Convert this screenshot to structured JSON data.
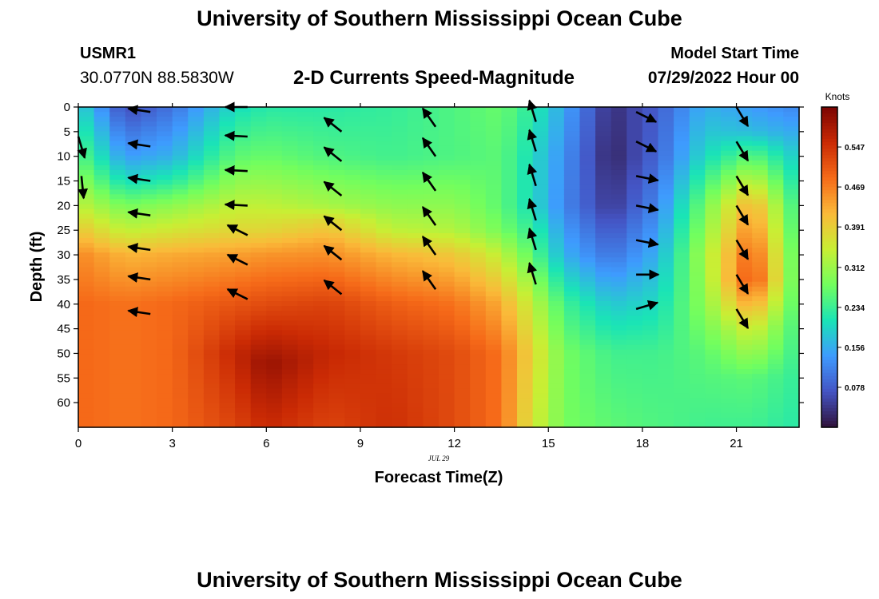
{
  "header": {
    "title": "University of Southern Mississippi Ocean Cube",
    "station": "USMR1",
    "coords": "30.0770N  88.5830W",
    "subtitle": "2-D Currents Speed-Magnitude",
    "model_start_label": "Model Start Time",
    "model_start_value": "07/29/2022 Hour 00"
  },
  "footer": {
    "title": "University of Southern Mississippi Ocean Cube"
  },
  "chart_data": {
    "type": "heatmap",
    "title": "2-D Currents Speed-Magnitude",
    "xlabel": "Forecast Time(Z)",
    "ylabel": "Depth (ft)",
    "date_label": "JUL 29",
    "xlim": [
      0,
      23
    ],
    "ylim": [
      0,
      65
    ],
    "y_inverted": true,
    "x_ticks": [
      0,
      3,
      6,
      9,
      12,
      15,
      18,
      21
    ],
    "y_ticks": [
      0,
      5,
      10,
      15,
      20,
      25,
      30,
      35,
      40,
      45,
      50,
      55,
      60
    ],
    "colorbar": {
      "label": "Knots",
      "ticks": [
        "0.547",
        "0.469",
        "0.391",
        "0.312",
        "0.234",
        "0.156",
        "0.078"
      ],
      "range": [
        0.0,
        0.625
      ],
      "colormap": [
        "#30123b",
        "#4454c4",
        "#3e9bfe",
        "#1ae4b6",
        "#72fe5e",
        "#c8ef34",
        "#faba39",
        "#f66b19",
        "#ca2a04",
        "#7a0403"
      ]
    },
    "speed_profiles": [
      {
        "hour": 0,
        "speed_by_depth": [
          [
            0,
            0.2
          ],
          [
            10,
            0.26
          ],
          [
            20,
            0.34
          ],
          [
            25,
            0.4
          ],
          [
            30,
            0.46
          ],
          [
            40,
            0.49
          ],
          [
            64,
            0.49
          ]
        ]
      },
      {
        "hour": 1.5,
        "speed_by_depth": [
          [
            0,
            0.06
          ],
          [
            10,
            0.14
          ],
          [
            15,
            0.2
          ],
          [
            20,
            0.28
          ],
          [
            25,
            0.34
          ],
          [
            30,
            0.42
          ],
          [
            40,
            0.48
          ],
          [
            64,
            0.48
          ]
        ]
      },
      {
        "hour": 3,
        "speed_by_depth": [
          [
            0,
            0.1
          ],
          [
            10,
            0.16
          ],
          [
            15,
            0.22
          ],
          [
            20,
            0.3
          ],
          [
            25,
            0.36
          ],
          [
            30,
            0.43
          ],
          [
            40,
            0.49
          ],
          [
            64,
            0.49
          ]
        ]
      },
      {
        "hour": 5,
        "speed_by_depth": [
          [
            0,
            0.2
          ],
          [
            10,
            0.26
          ],
          [
            20,
            0.34
          ],
          [
            25,
            0.38
          ],
          [
            30,
            0.44
          ],
          [
            40,
            0.51
          ],
          [
            50,
            0.56
          ],
          [
            64,
            0.53
          ]
        ]
      },
      {
        "hour": 6,
        "speed_by_depth": [
          [
            0,
            0.22
          ],
          [
            10,
            0.27
          ],
          [
            20,
            0.34
          ],
          [
            25,
            0.38
          ],
          [
            30,
            0.45
          ],
          [
            40,
            0.52
          ],
          [
            52,
            0.6
          ],
          [
            64,
            0.56
          ]
        ]
      },
      {
        "hour": 8,
        "speed_by_depth": [
          [
            0,
            0.22
          ],
          [
            10,
            0.25
          ],
          [
            20,
            0.32
          ],
          [
            23,
            0.38
          ],
          [
            28,
            0.44
          ],
          [
            40,
            0.53
          ],
          [
            50,
            0.56
          ],
          [
            64,
            0.53
          ]
        ]
      },
      {
        "hour": 10,
        "speed_by_depth": [
          [
            0,
            0.23
          ],
          [
            10,
            0.24
          ],
          [
            20,
            0.3
          ],
          [
            25,
            0.34
          ],
          [
            30,
            0.42
          ],
          [
            40,
            0.5
          ],
          [
            50,
            0.54
          ],
          [
            64,
            0.55
          ]
        ]
      },
      {
        "hour": 12,
        "speed_by_depth": [
          [
            0,
            0.25
          ],
          [
            10,
            0.25
          ],
          [
            20,
            0.3
          ],
          [
            25,
            0.33
          ],
          [
            30,
            0.4
          ],
          [
            40,
            0.48
          ],
          [
            50,
            0.52
          ],
          [
            64,
            0.52
          ]
        ]
      },
      {
        "hour": 13.5,
        "speed_by_depth": [
          [
            0,
            0.27
          ],
          [
            10,
            0.26
          ],
          [
            20,
            0.26
          ],
          [
            25,
            0.28
          ],
          [
            30,
            0.34
          ],
          [
            40,
            0.43
          ],
          [
            50,
            0.48
          ],
          [
            64,
            0.48
          ]
        ]
      },
      {
        "hour": 14.5,
        "speed_by_depth": [
          [
            0,
            0.22
          ],
          [
            10,
            0.2
          ],
          [
            20,
            0.2
          ],
          [
            30,
            0.26
          ],
          [
            40,
            0.34
          ],
          [
            50,
            0.38
          ],
          [
            64,
            0.36
          ]
        ]
      },
      {
        "hour": 15.5,
        "speed_by_depth": [
          [
            0,
            0.15
          ],
          [
            10,
            0.13
          ],
          [
            20,
            0.12
          ],
          [
            30,
            0.16
          ],
          [
            40,
            0.24
          ],
          [
            50,
            0.28
          ],
          [
            64,
            0.28
          ]
        ]
      },
      {
        "hour": 17,
        "speed_by_depth": [
          [
            0,
            0.03
          ],
          [
            10,
            0.02
          ],
          [
            20,
            0.04
          ],
          [
            30,
            0.1
          ],
          [
            40,
            0.18
          ],
          [
            50,
            0.24
          ],
          [
            64,
            0.26
          ]
        ]
      },
      {
        "hour": 18.5,
        "speed_by_depth": [
          [
            0,
            0.08
          ],
          [
            10,
            0.09
          ],
          [
            20,
            0.12
          ],
          [
            30,
            0.16
          ],
          [
            40,
            0.2
          ],
          [
            50,
            0.24
          ],
          [
            64,
            0.25
          ]
        ]
      },
      {
        "hour": 20,
        "speed_by_depth": [
          [
            0,
            0.16
          ],
          [
            10,
            0.2
          ],
          [
            20,
            0.28
          ],
          [
            30,
            0.32
          ],
          [
            40,
            0.3
          ],
          [
            50,
            0.26
          ],
          [
            64,
            0.24
          ]
        ]
      },
      {
        "hour": 21.5,
        "speed_by_depth": [
          [
            0,
            0.14
          ],
          [
            5,
            0.17
          ],
          [
            10,
            0.26
          ],
          [
            20,
            0.43
          ],
          [
            30,
            0.5
          ],
          [
            35,
            0.52
          ],
          [
            45,
            0.36
          ],
          [
            55,
            0.26
          ],
          [
            64,
            0.24
          ]
        ]
      },
      {
        "hour": 23,
        "speed_by_depth": [
          [
            0,
            0.12
          ],
          [
            10,
            0.18
          ],
          [
            20,
            0.22
          ],
          [
            30,
            0.24
          ],
          [
            40,
            0.24
          ],
          [
            64,
            0.22
          ]
        ]
      }
    ],
    "vectors": [
      {
        "hour": 0,
        "depths": [
          6
        ],
        "u": 0.3,
        "v": -1
      },
      {
        "hour": 0.1,
        "depths": [
          14
        ],
        "u": 0.1,
        "v": -1
      },
      {
        "hour": 2.3,
        "depths": [
          1,
          8,
          15,
          22,
          29,
          35,
          42
        ],
        "u": -1,
        "v": 0.15
      },
      {
        "hour": 5.4,
        "depths": [
          0
        ],
        "u": -1,
        "v": 0
      },
      {
        "hour": 5.4,
        "depths": [
          6,
          13,
          20
        ],
        "u": -1,
        "v": 0.05
      },
      {
        "hour": 5.4,
        "depths": [
          26,
          32,
          39
        ],
        "u": -1,
        "v": 0.5
      },
      {
        "hour": 8.4,
        "depths": [
          5,
          11,
          18,
          25,
          31,
          38
        ],
        "u": -1,
        "v": 0.8
      },
      {
        "hour": 11.4,
        "depths": [
          4,
          10,
          17,
          24,
          30,
          37
        ],
        "u": -0.7,
        "v": 1
      },
      {
        "hour": 14.6,
        "depths": [
          3,
          9,
          16,
          23,
          29,
          36
        ],
        "u": -0.3,
        "v": 1
      },
      {
        "hour": 17.8,
        "depths": [
          1,
          7
        ],
        "u": 1,
        "v": -0.5
      },
      {
        "hour": 17.8,
        "depths": [
          14,
          20,
          27
        ],
        "u": 1,
        "v": -0.2
      },
      {
        "hour": 17.8,
        "depths": [
          34
        ],
        "u": 1,
        "v": 0
      },
      {
        "hour": 17.8,
        "depths": [
          41
        ],
        "u": 1,
        "v": 0.3
      },
      {
        "hour": 21.0,
        "depths": [
          0,
          7,
          14,
          20,
          27,
          34,
          41
        ],
        "u": 0.6,
        "v": -1
      }
    ]
  }
}
